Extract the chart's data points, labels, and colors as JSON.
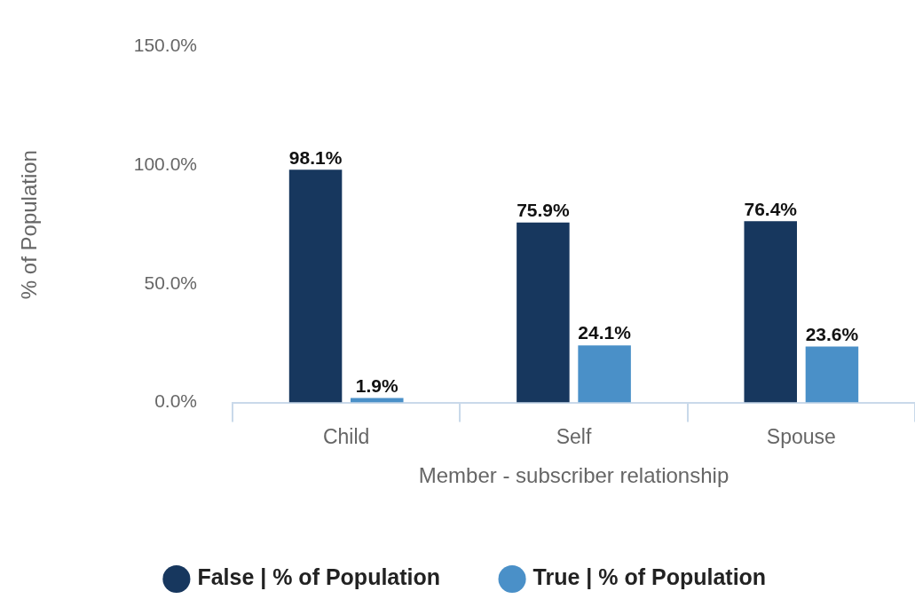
{
  "chart_data": {
    "type": "bar",
    "xlabel": "Member - subscriber relationship",
    "ylabel": "% of Population",
    "categories": [
      "Child",
      "Self",
      "Spouse"
    ],
    "series": [
      {
        "name": "False | % of Population",
        "color": "#17375e",
        "values": [
          98.1,
          75.9,
          76.4
        ],
        "value_labels": [
          "98.1%",
          "75.9%",
          "76.4%"
        ]
      },
      {
        "name": "True | % of Population",
        "color": "#4a90c8",
        "values": [
          1.9,
          24.1,
          23.6
        ],
        "value_labels": [
          "1.9%",
          "24.1%",
          "23.6%"
        ]
      }
    ],
    "ylim": [
      0,
      150
    ],
    "yticks": [
      {
        "value": 0,
        "label": "0.0%"
      },
      {
        "value": 50,
        "label": "50.0%"
      },
      {
        "value": 100,
        "label": "100.0%"
      },
      {
        "value": 150,
        "label": "150.0%"
      }
    ],
    "legend": "bottom"
  }
}
